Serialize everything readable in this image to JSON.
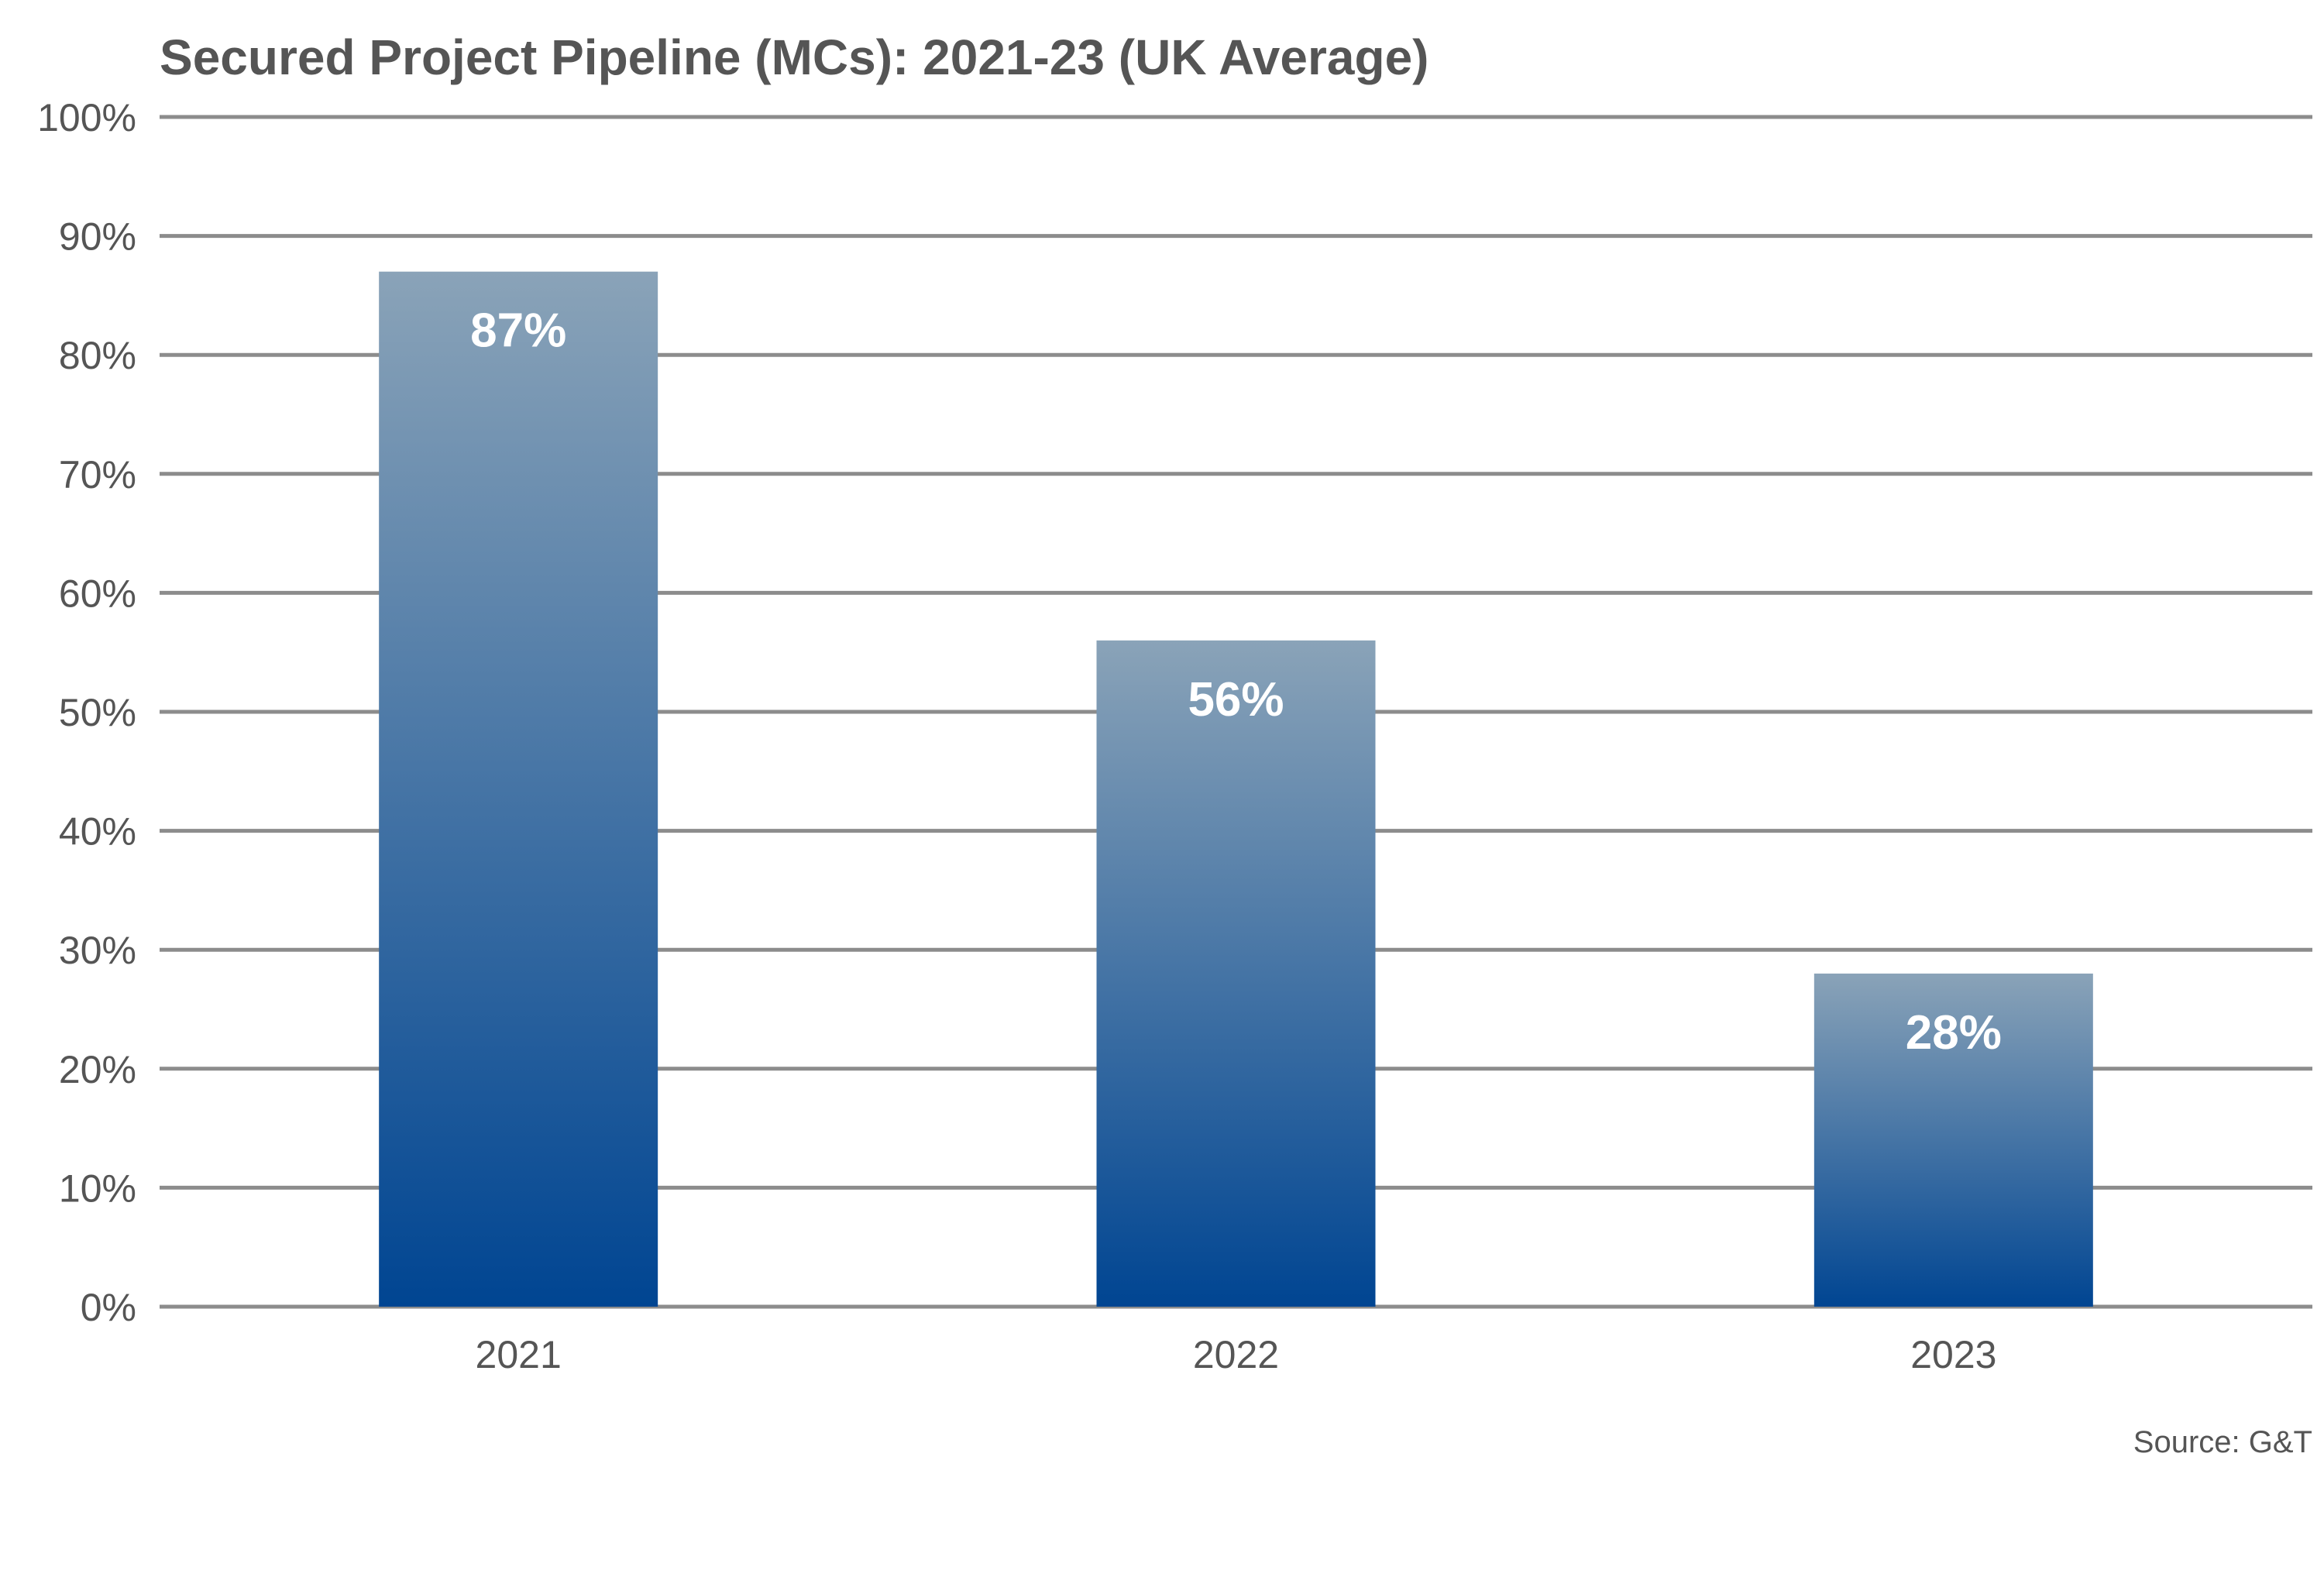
{
  "chart_data": {
    "type": "bar",
    "title": "Secured Project Pipeline (MCs): 2021-23 (UK Average)",
    "categories": [
      "2021",
      "2022",
      "2023"
    ],
    "values": [
      87,
      56,
      28
    ],
    "data_labels": [
      "87%",
      "56%",
      "28%"
    ],
    "y_ticks": [
      "0%",
      "10%",
      "20%",
      "30%",
      "40%",
      "50%",
      "60%",
      "70%",
      "80%",
      "90%",
      "100%"
    ],
    "ylim": [
      0,
      100
    ],
    "grid": true,
    "source": "Source: G&T",
    "colors": {
      "bar_top": "#8aa3b8",
      "bar_bottom": "#004592",
      "grid": "#8c8c8c",
      "text": "#555555"
    }
  }
}
